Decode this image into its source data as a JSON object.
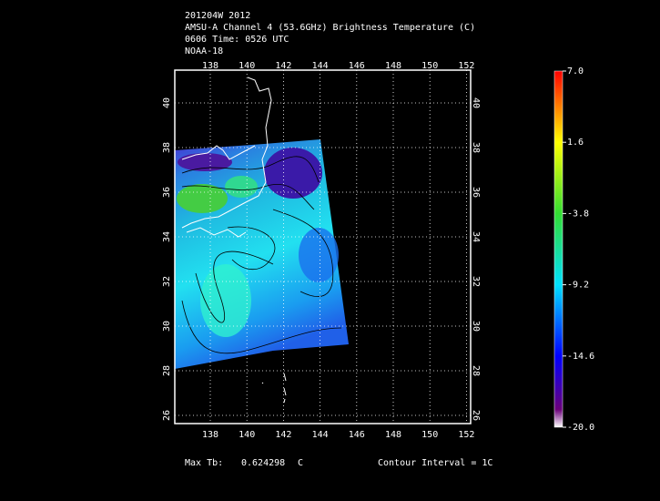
{
  "header": {
    "lines": [
      "201204W 2012",
      "AMSU-A Channel 4 (53.6GHz) Brightness Temperature (C)",
      "0606 Time: 0526 UTC",
      "NOAA-18"
    ]
  },
  "map": {
    "lon_ticks": [
      138,
      140,
      142,
      144,
      146,
      148,
      150,
      152
    ],
    "lat_ticks": [
      26,
      28,
      30,
      32,
      34,
      36,
      38,
      40
    ]
  },
  "colorbar": {
    "ticks": [
      {
        "value": 7,
        "label": "7.0"
      },
      1.6,
      -3.8,
      -9.2,
      -14.6,
      {
        "value": -20,
        "label": "-20.0"
      }
    ]
  },
  "footer": {
    "max_label": "Max Tb:",
    "max_value": 0.624298,
    "unit": "C",
    "contour": "Contour Interval = 1C"
  }
}
